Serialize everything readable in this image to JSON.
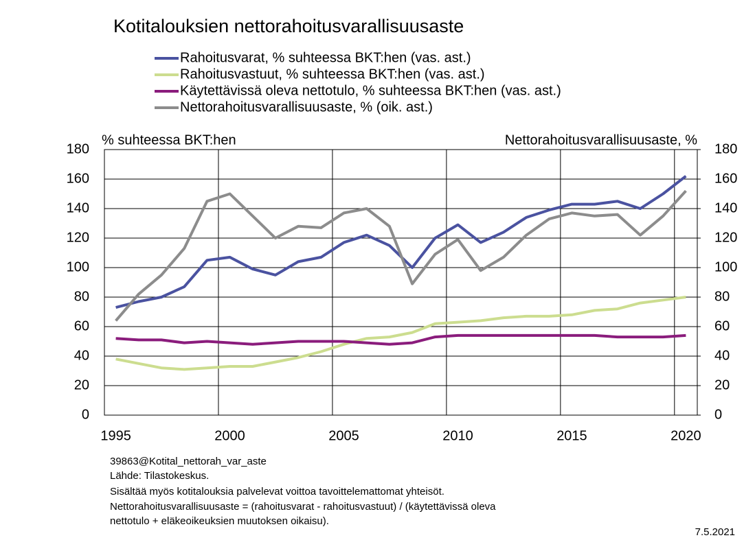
{
  "chart_data": {
    "type": "line",
    "title": "Kotitalouksien nettorahoitusvarallisuusaste",
    "y_label": "% suhteessa BKT:hen",
    "y2_label": "Nettorahoitusvarallisuusaste, %",
    "categories": [
      "1995",
      null,
      null,
      null,
      null,
      "2000",
      null,
      null,
      null,
      null,
      "2005",
      null,
      null,
      null,
      null,
      "2010",
      null,
      null,
      null,
      null,
      "2015",
      null,
      null,
      null,
      null,
      "2020"
    ],
    "series": [
      {
        "name": "Rahoitusvarat, % suhteessa BKT:hen (vas. ast.)",
        "color": "#4a52a0",
        "values": [
          73,
          77,
          80,
          87,
          105,
          107,
          99,
          95,
          104,
          107,
          117,
          122,
          115,
          100,
          120,
          129,
          117,
          124,
          134,
          139,
          143,
          143,
          145,
          140,
          150,
          162
        ]
      },
      {
        "name": "Rahoitusvastuut, % suhteessa BKT:hen (vas. ast.)",
        "color": "#ccdd8f",
        "values": [
          38,
          35,
          32,
          31,
          32,
          33,
          33,
          36,
          39,
          43,
          48,
          52,
          53,
          56,
          62,
          63,
          64,
          66,
          67,
          67,
          68,
          71,
          72,
          76,
          78,
          80
        ]
      },
      {
        "name": "Käytettävissä oleva nettotulo, % suhteessa BKT:hen (vas. ast.)",
        "color": "#8a1c7c",
        "values": [
          52,
          51,
          51,
          49,
          50,
          49,
          48,
          49,
          50,
          50,
          50,
          49,
          48,
          49,
          53,
          54,
          54,
          54,
          54,
          54,
          54,
          54,
          53,
          53,
          53,
          54
        ]
      },
      {
        "name": "Nettorahoitusvarallisuusaste, % (oik. ast.)",
        "color": "#8c8c8c",
        "axis": "y2",
        "values": [
          64,
          82,
          95,
          113,
          145,
          150,
          135,
          120,
          128,
          127,
          137,
          140,
          128,
          89,
          109,
          119,
          98,
          107,
          122,
          133,
          137,
          135,
          136,
          122,
          135,
          152
        ]
      }
    ],
    "ylim": [
      0,
      180
    ],
    "yticks": [
      0,
      20,
      40,
      60,
      80,
      100,
      120,
      140,
      160,
      180
    ],
    "y2lim": [
      0,
      180
    ],
    "y2ticks": [
      0,
      20,
      40,
      60,
      80,
      100,
      120,
      140,
      160,
      180
    ],
    "grid": true,
    "notes": [
      "39863@Kotital_nettorah_var_aste",
      "Lähde: Tilastokeskus.",
      "Sisältää myös kotitalouksia palvelevat voittoa tavoittelemattomat yhteisöt.",
      "Nettorahoitusvarallisuusaste  = (rahoitusvarat  - rahoitusvastuut)  / (käytettävissä oleva",
      "nettotulo + eläkeoikeuksien muutoksen oikaisu)."
    ],
    "date": "7.5.2021"
  }
}
